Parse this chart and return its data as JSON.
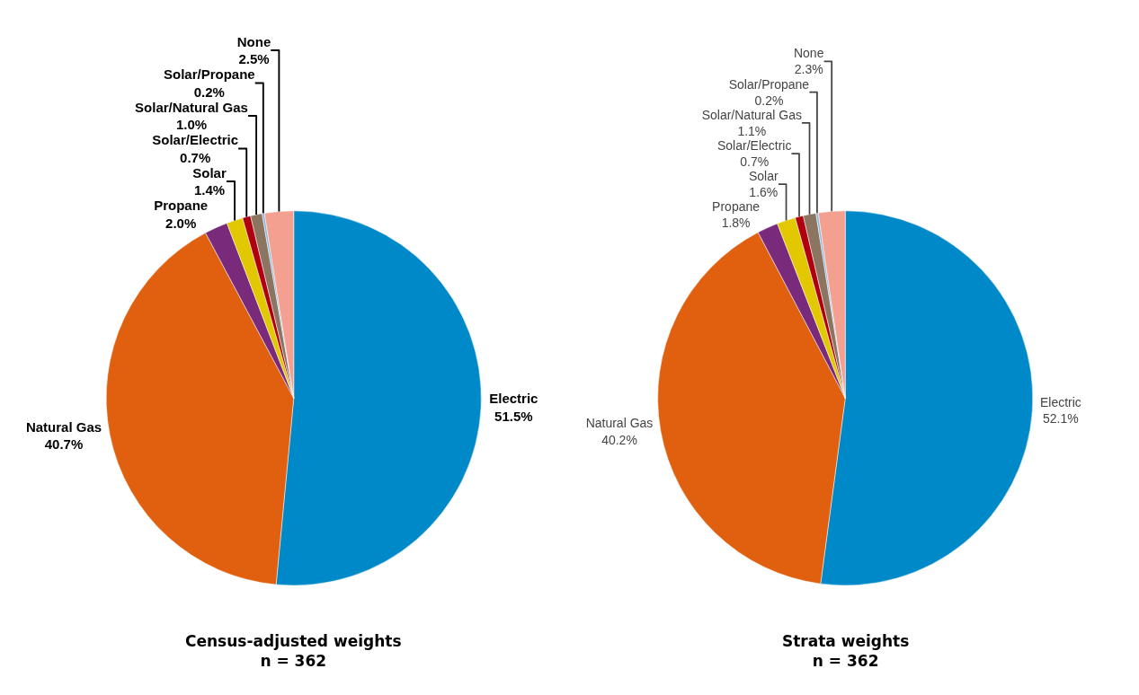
{
  "chart_data": [
    {
      "type": "pie",
      "title": "Census-adjusted weights",
      "subtitle": "n = 362",
      "categories": [
        "Electric",
        "Natural Gas",
        "Propane",
        "Solar",
        "Solar/Electric",
        "Solar/Natural Gas",
        "Solar/Propane",
        "None"
      ],
      "values": [
        51.5,
        40.7,
        2.0,
        1.4,
        0.7,
        1.0,
        0.2,
        2.5
      ],
      "value_labels": [
        "51.5%",
        "40.7%",
        "2.0%",
        "1.4%",
        "0.7%",
        "1.0%",
        "0.2%",
        "2.5%"
      ],
      "colors": [
        "#0089c8",
        "#e06010",
        "#7a2a7a",
        "#e2c800",
        "#b00010",
        "#8c7560",
        "#8ab8e0",
        "#f4a090"
      ],
      "legend": false
    },
    {
      "type": "pie",
      "title": "Strata weights",
      "subtitle": "n = 362",
      "categories": [
        "Electric",
        "Natural Gas",
        "Propane",
        "Solar",
        "Solar/Electric",
        "Solar/Natural Gas",
        "Solar/Propane",
        "None"
      ],
      "values": [
        52.1,
        40.2,
        1.8,
        1.6,
        0.7,
        1.1,
        0.2,
        2.3
      ],
      "value_labels": [
        "52.1%",
        "40.2%",
        "1.8%",
        "1.6%",
        "0.7%",
        "1.1%",
        "0.2%",
        "2.3%"
      ],
      "colors": [
        "#0089c8",
        "#e06010",
        "#7a2a7a",
        "#e2c800",
        "#b00010",
        "#8c7560",
        "#8ab8e0",
        "#f4a090"
      ],
      "legend": false
    }
  ]
}
